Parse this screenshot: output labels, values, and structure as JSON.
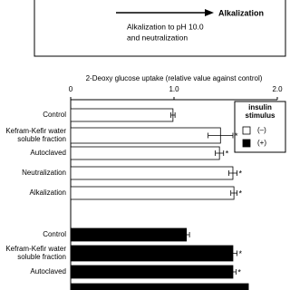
{
  "chart_data": {
    "type": "bar",
    "diagram": {
      "arrow_label": [
        "Alkalization to pH 10.0",
        "and neutralization"
      ],
      "arrow_end": "Alkalization"
    },
    "xlabel": "2-Deoxy glucose uptake (relative value against control)",
    "categories": [
      [
        "Control"
      ],
      [
        "Kefram-Kefir water",
        "soluble fraction"
      ],
      [
        "Autoclaved"
      ],
      [
        "Neutralization"
      ],
      [
        "Alkalization"
      ],
      [
        "Control"
      ],
      [
        "Kefram-Kefir water",
        "soluble fraction"
      ],
      [
        "Autoclaved"
      ],
      null
    ],
    "series": [
      {
        "name": "(–)",
        "color": "#ffffff",
        "values": [
          0.99,
          1.45,
          1.44,
          1.57,
          1.58,
          null,
          null,
          null,
          null
        ],
        "errors": [
          0.02,
          0.12,
          0.04,
          0.04,
          0.03,
          null,
          null,
          null,
          null
        ],
        "marks": [
          null,
          "*",
          "*",
          "*",
          "*",
          null,
          null,
          null,
          null
        ]
      },
      {
        "name": "(+)",
        "color": "#000000",
        "values": [
          null,
          null,
          null,
          null,
          null,
          1.12,
          1.57,
          1.57,
          1.72
        ],
        "errors": [
          null,
          null,
          null,
          null,
          null,
          0.03,
          0.04,
          0.03,
          null
        ],
        "marks": [
          null,
          null,
          null,
          null,
          null,
          null,
          "*",
          "*",
          null
        ]
      }
    ],
    "legend_title": [
      "insulin",
      "stimulus"
    ],
    "xlim": [
      0,
      2
    ],
    "xticks": [
      0,
      {
        "value": 1,
        "label": "1.0"
      },
      {
        "value": 2,
        "label": "2.0"
      }
    ]
  }
}
